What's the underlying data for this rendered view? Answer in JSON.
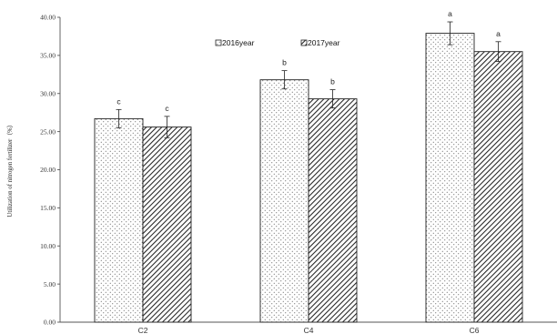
{
  "chart_data": {
    "type": "bar",
    "title": "",
    "xlabel": "",
    "ylabel": "Utilization of nitrogen fertilizer（%）",
    "ylim": [
      0,
      40
    ],
    "yticks": [
      "0.00",
      "5.00",
      "10.00",
      "15.00",
      "20.00",
      "25.00",
      "30.00",
      "35.00",
      "40.00"
    ],
    "categories": [
      "C2",
      "C4",
      "C6"
    ],
    "legend_position": "top-center",
    "grid": false,
    "series": [
      {
        "name": "2016year",
        "pattern": "dots",
        "values": [
          26.7,
          31.8,
          37.9
        ],
        "errors": [
          1.2,
          1.2,
          1.5
        ],
        "labels": [
          "c",
          "b",
          "a"
        ]
      },
      {
        "name": "2017year",
        "pattern": "diagonal-hatch",
        "values": [
          25.6,
          29.3,
          35.5
        ],
        "errors": [
          1.4,
          1.2,
          1.3
        ],
        "labels": [
          "c",
          "b",
          "a"
        ]
      }
    ]
  }
}
